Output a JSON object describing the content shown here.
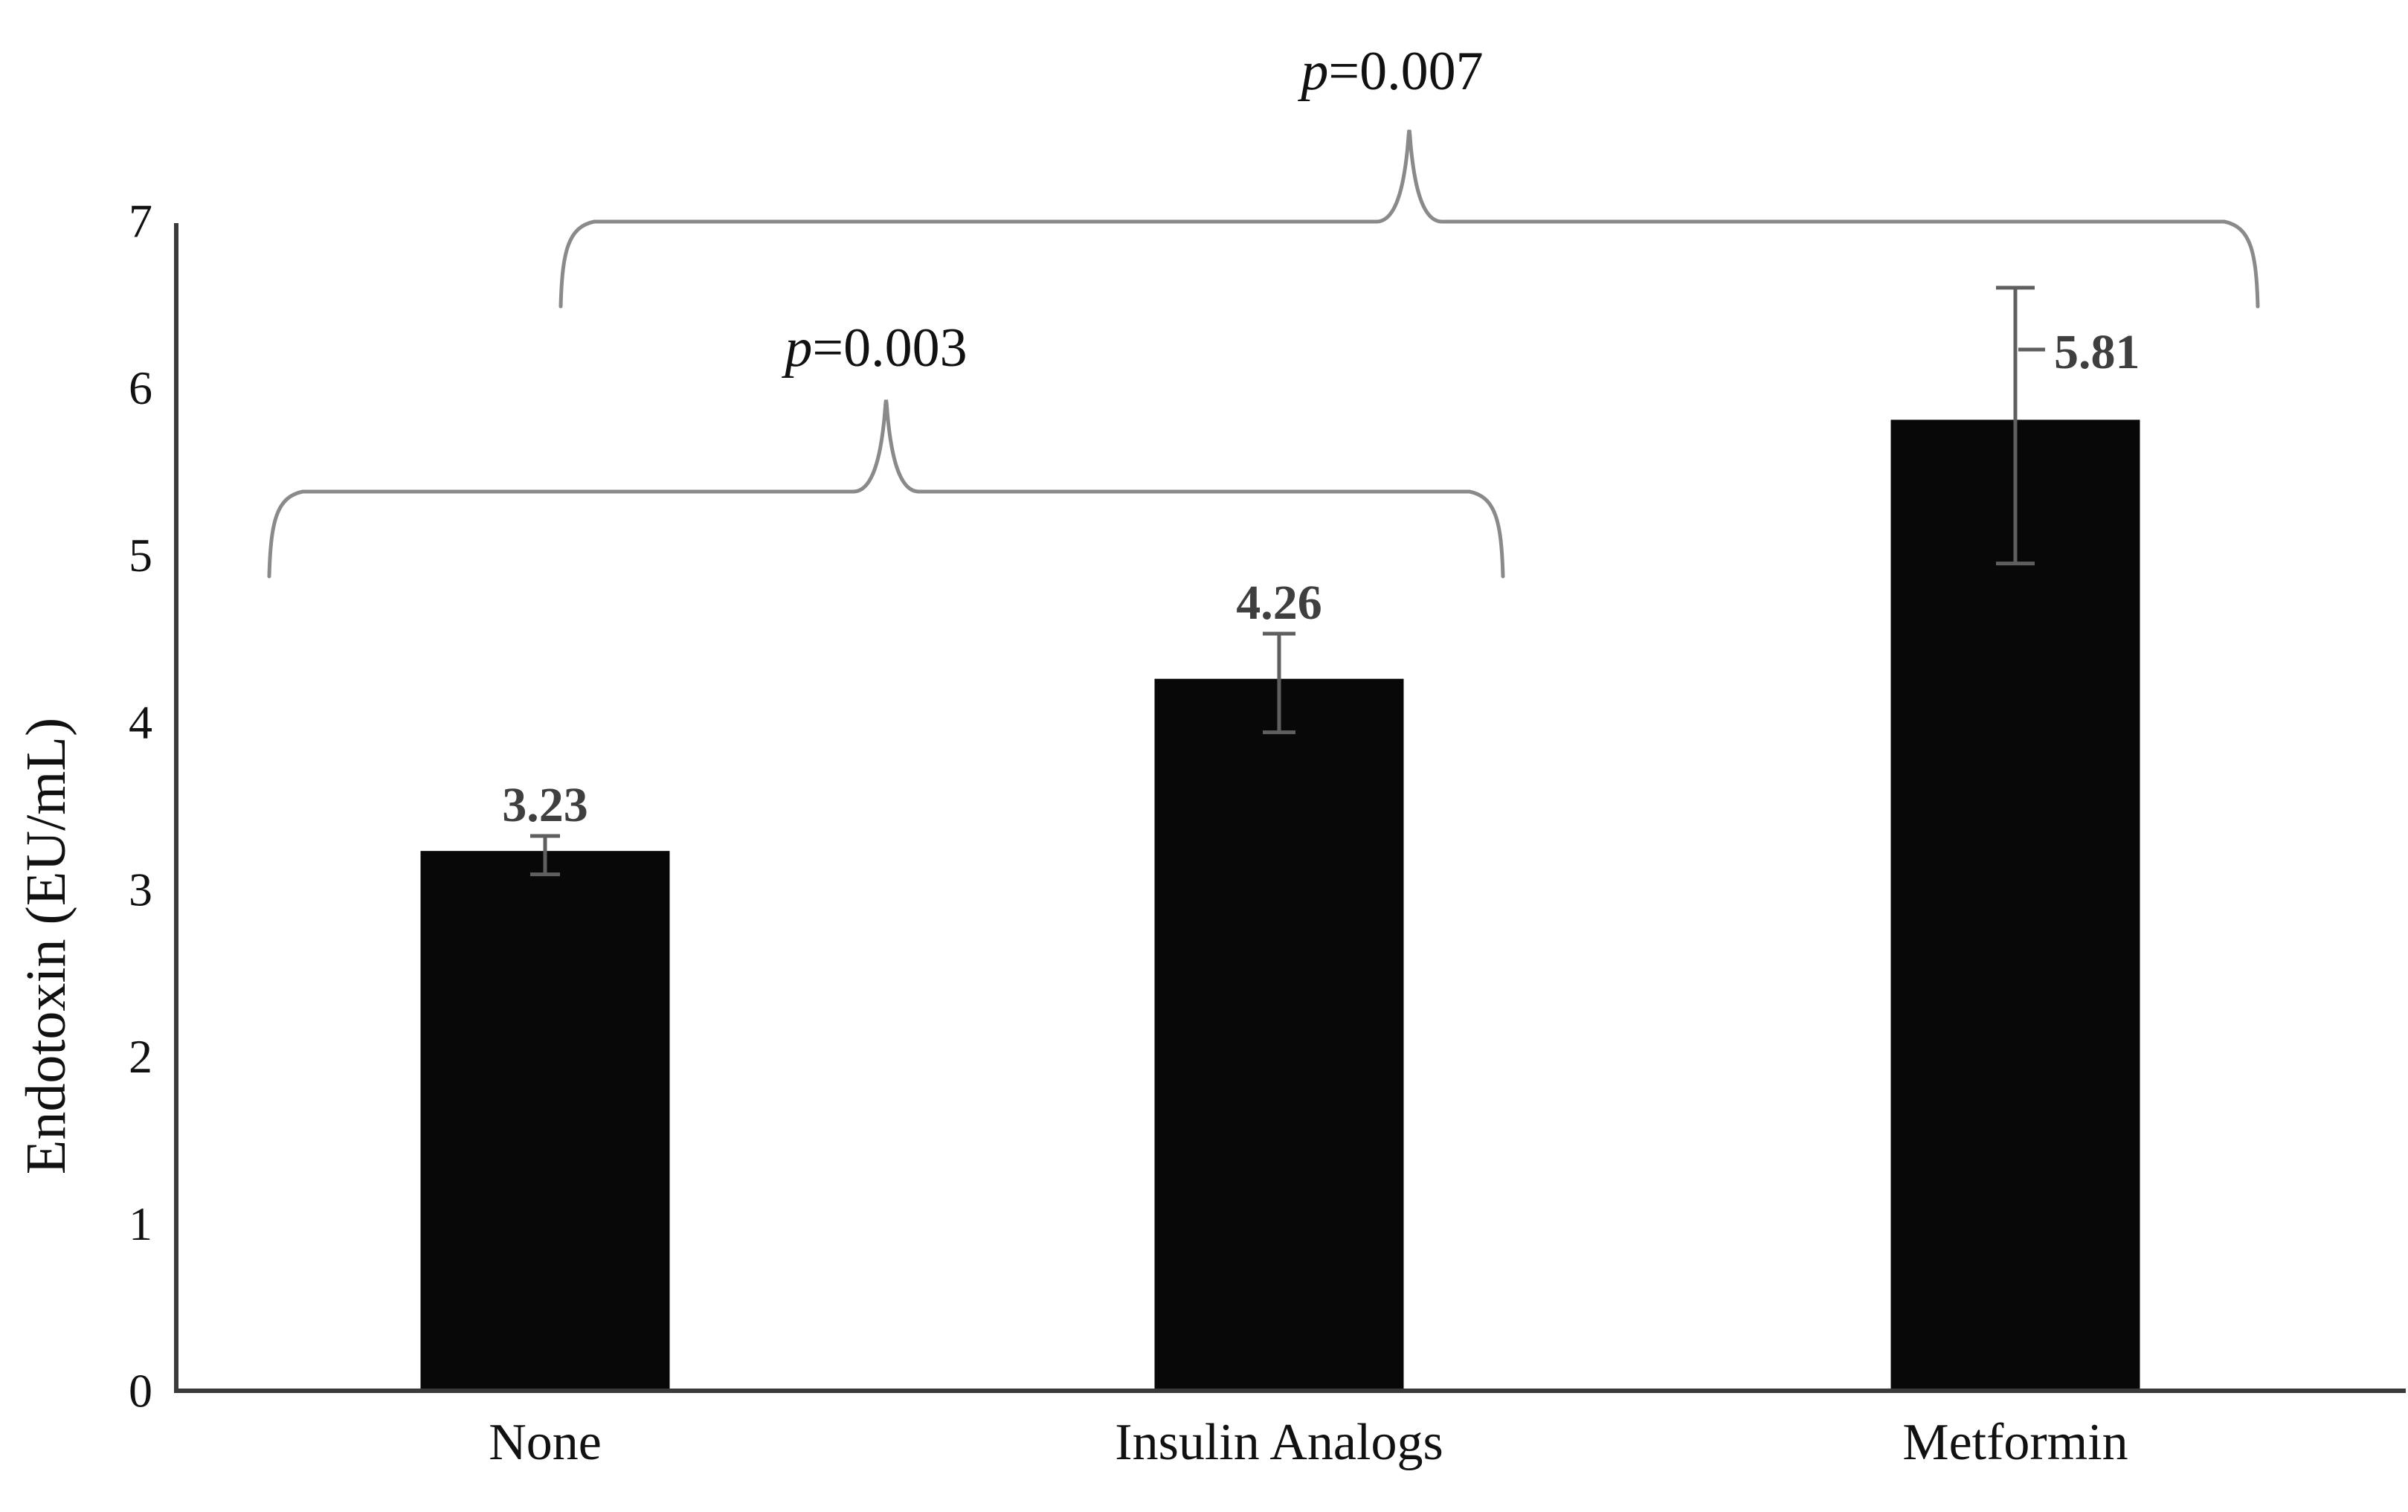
{
  "chart_data": {
    "type": "bar",
    "title": "",
    "xlabel": "",
    "ylabel": "Endotoxin (EU/mL)",
    "ylim": [
      0,
      7
    ],
    "yticks": [
      0,
      1,
      2,
      3,
      4,
      5,
      6,
      7
    ],
    "grid": false,
    "legend": false,
    "categories": [
      "None",
      "Insulin Analogs",
      "Metformin"
    ],
    "values": [
      3.23,
      4.26,
      5.81
    ],
    "value_labels": [
      "3.23",
      "4.26",
      "5.81"
    ],
    "error_bars": [
      {
        "high": 3.32,
        "low": 3.09
      },
      {
        "high": 4.53,
        "low": 3.94
      },
      {
        "high": 6.6,
        "low": 4.95
      }
    ],
    "significance_brackets": [
      {
        "italic_part": "p",
        "text_part": "=0.003",
        "between": [
          "None",
          "Insulin Analogs"
        ]
      },
      {
        "italic_part": "p",
        "text_part": "=0.007",
        "between": [
          "None",
          "Metformin"
        ]
      }
    ],
    "colors": {
      "bar_fill": "#080808",
      "axis": "#3a3a3a",
      "error_bar": "#5f5f5f",
      "brace": "#8a8a8a",
      "value_label": "#3f3f3f",
      "text": "#111111",
      "background": "#ffffff"
    }
  }
}
